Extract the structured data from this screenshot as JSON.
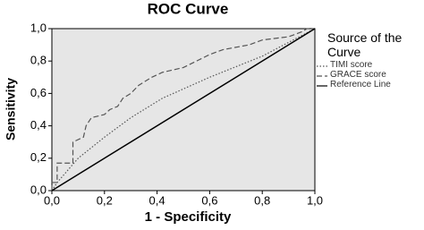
{
  "chart_data": {
    "type": "line",
    "title": "ROC Curve",
    "xlabel": "1 - Specificity",
    "ylabel": "Sensitivity",
    "legend_title": "Source of the Curve",
    "legend": "right",
    "xlim": [
      0,
      1
    ],
    "ylim": [
      0,
      1
    ],
    "xticks": [
      {
        "value": 0,
        "label": "0,0"
      },
      {
        "value": 0.2,
        "label": "0,2"
      },
      {
        "value": 0.4,
        "label": "0,4"
      },
      {
        "value": 0.6,
        "label": "0,6"
      },
      {
        "value": 0.8,
        "label": "0,8"
      },
      {
        "value": 1,
        "label": "1,0"
      }
    ],
    "yticks": [
      {
        "value": 0,
        "label": "0,0"
      },
      {
        "value": 0.2,
        "label": "0,2"
      },
      {
        "value": 0.4,
        "label": "0,4"
      },
      {
        "value": 0.6,
        "label": "0,6"
      },
      {
        "value": 0.8,
        "label": "0,8"
      },
      {
        "value": 1,
        "label": "1,0"
      }
    ],
    "series": [
      {
        "name": "TIMI score",
        "color": "#555555",
        "dash": "dotted",
        "x": [
          0,
          0.02,
          0.1,
          0.2,
          0.3,
          0.42,
          0.6,
          0.8,
          1
        ],
        "values": [
          0,
          0.05,
          0.2,
          0.33,
          0.45,
          0.57,
          0.7,
          0.83,
          1
        ]
      },
      {
        "name": "GRACE score",
        "color": "#555555",
        "dash": "dashed",
        "x": [
          0,
          0,
          0.02,
          0.02,
          0.08,
          0.08,
          0.12,
          0.13,
          0.15,
          0.2,
          0.22,
          0.25,
          0.27,
          0.3,
          0.33,
          0.38,
          0.42,
          0.5,
          0.55,
          0.6,
          0.65,
          0.75,
          0.8,
          0.9,
          0.95,
          0.97,
          1
        ],
        "values": [
          0,
          0.05,
          0.05,
          0.17,
          0.17,
          0.3,
          0.33,
          0.4,
          0.45,
          0.47,
          0.5,
          0.52,
          0.57,
          0.6,
          0.65,
          0.7,
          0.73,
          0.76,
          0.8,
          0.84,
          0.87,
          0.9,
          0.93,
          0.95,
          0.98,
          1,
          1
        ]
      },
      {
        "name": "Reference Line",
        "color": "#000000",
        "dash": "solid",
        "x": [
          0,
          1
        ],
        "values": [
          0,
          1
        ]
      }
    ]
  }
}
